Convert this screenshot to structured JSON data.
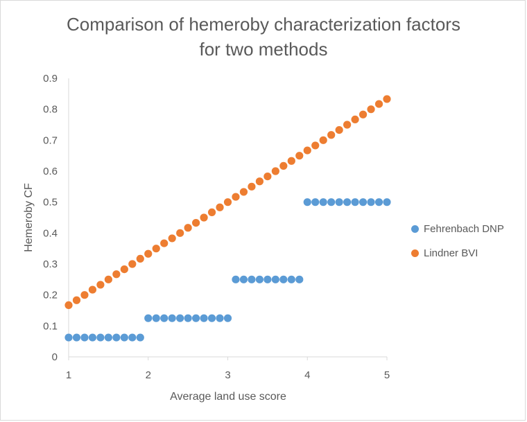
{
  "chart_data": {
    "type": "scatter",
    "title_line1": "Comparison of hemeroby characterization factors",
    "title_line2": "for two methods",
    "xlabel": "Average land use score",
    "ylabel": "Hemeroby CF",
    "xlim": [
      1,
      5
    ],
    "ylim": [
      0,
      0.9
    ],
    "x_ticks": [
      "1",
      "2",
      "3",
      "4",
      "5"
    ],
    "y_ticks": [
      "0",
      "0.1",
      "0.2",
      "0.3",
      "0.4",
      "0.5",
      "0.6",
      "0.7",
      "0.8",
      "0.9"
    ],
    "grid": false,
    "legend_position": "right",
    "series": [
      {
        "name": "Fehrenbach DNP",
        "color": "#5b9bd5",
        "points": [
          [
            1.0,
            0.0625
          ],
          [
            1.1,
            0.0625
          ],
          [
            1.2,
            0.0625
          ],
          [
            1.3,
            0.0625
          ],
          [
            1.4,
            0.0625
          ],
          [
            1.5,
            0.0625
          ],
          [
            1.6,
            0.0625
          ],
          [
            1.7,
            0.0625
          ],
          [
            1.8,
            0.0625
          ],
          [
            1.9,
            0.0625
          ],
          [
            2.0,
            0.125
          ],
          [
            2.1,
            0.125
          ],
          [
            2.2,
            0.125
          ],
          [
            2.3,
            0.125
          ],
          [
            2.4,
            0.125
          ],
          [
            2.5,
            0.125
          ],
          [
            2.6,
            0.125
          ],
          [
            2.7,
            0.125
          ],
          [
            2.8,
            0.125
          ],
          [
            2.9,
            0.125
          ],
          [
            3.0,
            0.125
          ],
          [
            3.1,
            0.25
          ],
          [
            3.2,
            0.25
          ],
          [
            3.3,
            0.25
          ],
          [
            3.4,
            0.25
          ],
          [
            3.5,
            0.25
          ],
          [
            3.6,
            0.25
          ],
          [
            3.7,
            0.25
          ],
          [
            3.8,
            0.25
          ],
          [
            3.9,
            0.25
          ],
          [
            4.0,
            0.5
          ],
          [
            4.1,
            0.5
          ],
          [
            4.2,
            0.5
          ],
          [
            4.3,
            0.5
          ],
          [
            4.4,
            0.5
          ],
          [
            4.5,
            0.5
          ],
          [
            4.6,
            0.5
          ],
          [
            4.7,
            0.5
          ],
          [
            4.8,
            0.5
          ],
          [
            4.9,
            0.5
          ],
          [
            5.0,
            0.5
          ]
        ]
      },
      {
        "name": "Lindner BVI",
        "color": "#ed7d31",
        "points": [
          [
            1.0,
            0.167
          ],
          [
            1.1,
            0.183
          ],
          [
            1.2,
            0.2
          ],
          [
            1.3,
            0.217
          ],
          [
            1.4,
            0.233
          ],
          [
            1.5,
            0.25
          ],
          [
            1.6,
            0.267
          ],
          [
            1.7,
            0.283
          ],
          [
            1.8,
            0.3
          ],
          [
            1.9,
            0.317
          ],
          [
            2.0,
            0.333
          ],
          [
            2.1,
            0.35
          ],
          [
            2.2,
            0.367
          ],
          [
            2.3,
            0.383
          ],
          [
            2.4,
            0.4
          ],
          [
            2.5,
            0.417
          ],
          [
            2.6,
            0.433
          ],
          [
            2.7,
            0.45
          ],
          [
            2.8,
            0.467
          ],
          [
            2.9,
            0.483
          ],
          [
            3.0,
            0.5
          ],
          [
            3.1,
            0.517
          ],
          [
            3.2,
            0.533
          ],
          [
            3.3,
            0.55
          ],
          [
            3.4,
            0.567
          ],
          [
            3.5,
            0.583
          ],
          [
            3.6,
            0.6
          ],
          [
            3.7,
            0.617
          ],
          [
            3.8,
            0.633
          ],
          [
            3.9,
            0.65
          ],
          [
            4.0,
            0.667
          ],
          [
            4.1,
            0.683
          ],
          [
            4.2,
            0.7
          ],
          [
            4.3,
            0.717
          ],
          [
            4.4,
            0.733
          ],
          [
            4.5,
            0.75
          ],
          [
            4.6,
            0.767
          ],
          [
            4.7,
            0.783
          ],
          [
            4.8,
            0.8
          ],
          [
            4.9,
            0.817
          ],
          [
            5.0,
            0.833
          ]
        ]
      }
    ]
  }
}
